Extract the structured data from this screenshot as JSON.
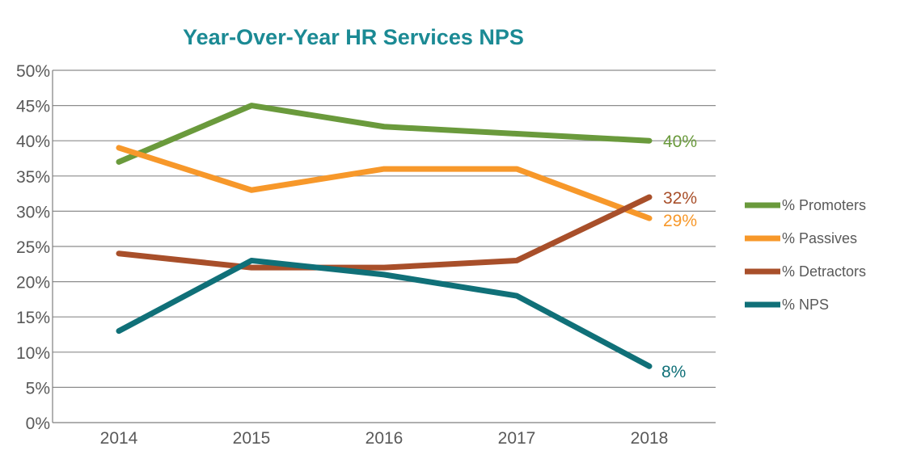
{
  "chart_data": {
    "type": "line",
    "title": "Year-Over-Year HR Services NPS",
    "title_color": "#1b8a94",
    "x": [
      "2014",
      "2015",
      "2016",
      "2017",
      "2018"
    ],
    "y_ticks": [
      "0%",
      "5%",
      "10%",
      "15%",
      "20%",
      "25%",
      "30%",
      "35%",
      "40%",
      "45%",
      "50%"
    ],
    "ylim": [
      0,
      50
    ],
    "grid": true,
    "legend_position": "right",
    "series": [
      {
        "name": "% Promoters",
        "color": "#6a9a3c",
        "values": [
          37,
          45,
          42,
          41,
          40
        ],
        "end_label": "40%"
      },
      {
        "name": "% Passives",
        "color": "#f7982a",
        "values": [
          39,
          33,
          36,
          36,
          29
        ],
        "end_label": "29%"
      },
      {
        "name": "% Detractors",
        "color": "#a84f2a",
        "values": [
          24,
          22,
          22,
          23,
          32
        ],
        "end_label": "32%"
      },
      {
        "name": "% NPS",
        "color": "#107078",
        "values": [
          13,
          23,
          21,
          18,
          8
        ],
        "end_label": "8%"
      }
    ]
  }
}
